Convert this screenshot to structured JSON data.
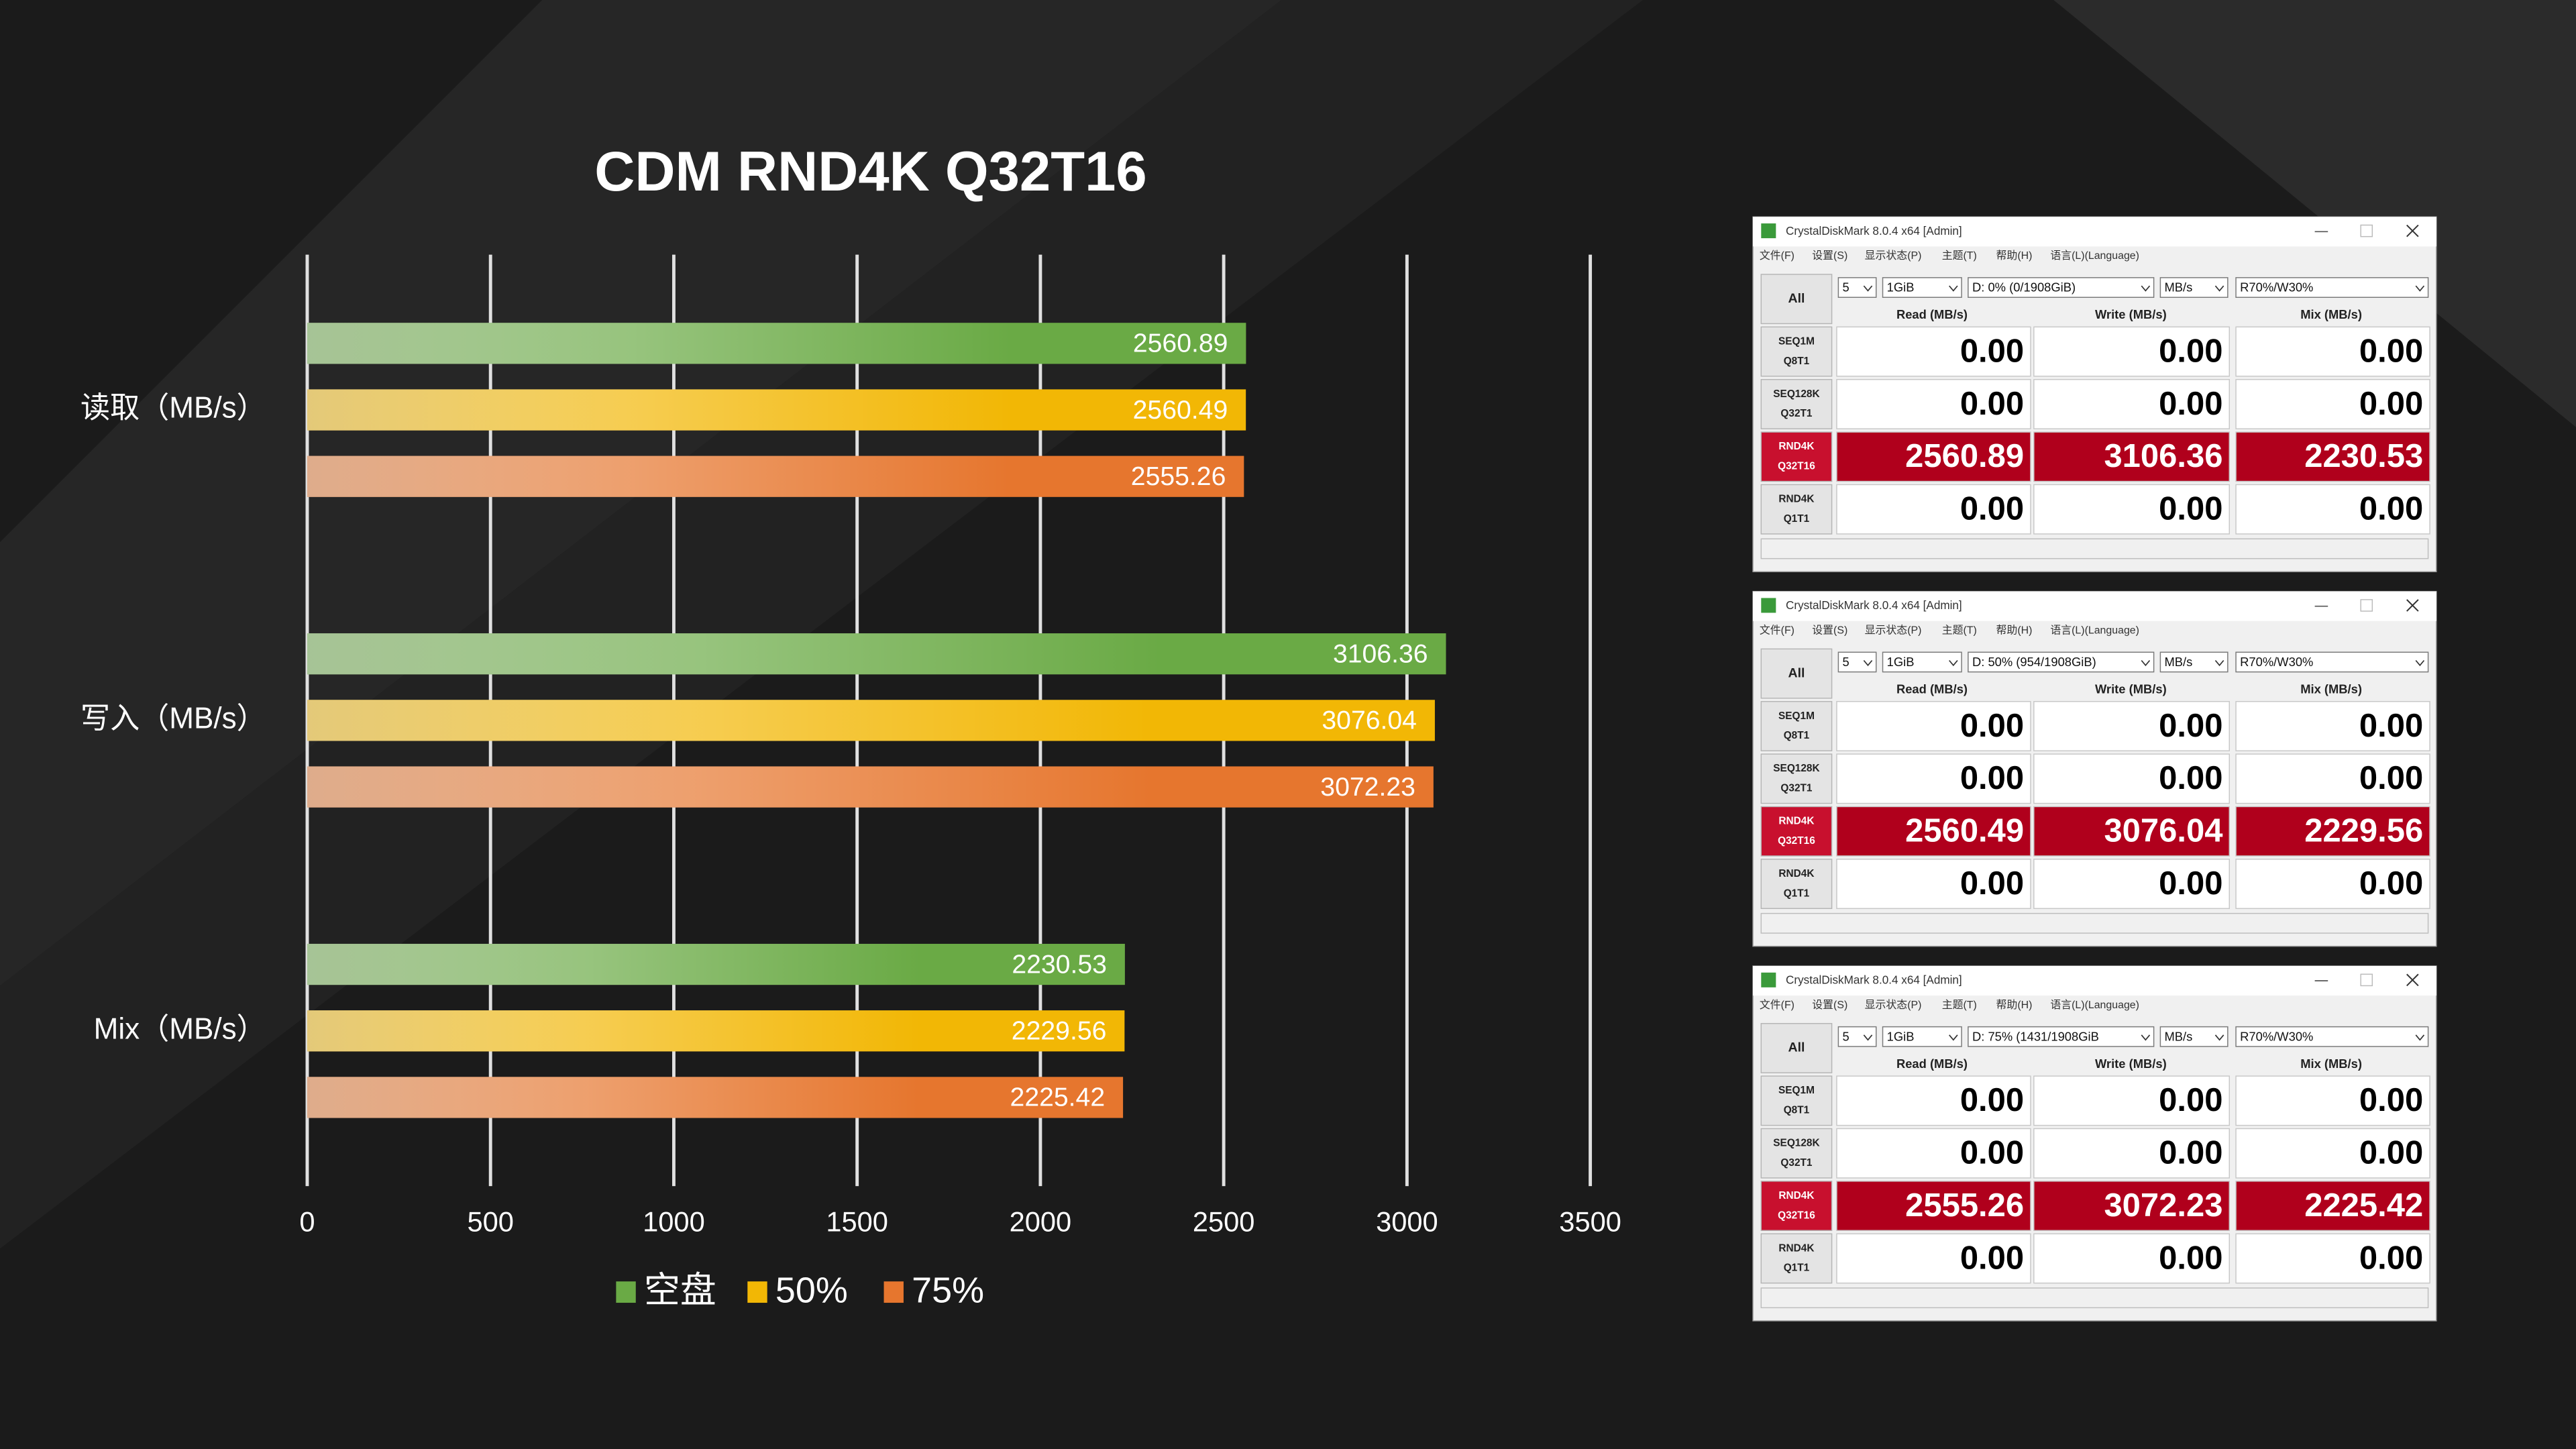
{
  "chart_data": {
    "type": "barh",
    "title": "CDM RND4K Q32T16",
    "categories": [
      "读取（MB/s）",
      "写入（MB/s）",
      "Mix（MB/s）"
    ],
    "series": [
      {
        "name": "空盘",
        "color": "#6aaa45",
        "values": [
          2560.89,
          3106.36,
          2230.53
        ]
      },
      {
        "name": "50%",
        "color": "#f2b705",
        "values": [
          2560.49,
          3076.04,
          2229.56
        ]
      },
      {
        "name": "75%",
        "color": "#e6762e",
        "values": [
          2555.26,
          3072.23,
          2225.42
        ]
      }
    ],
    "xlim": [
      0,
      3500
    ],
    "xticks": [
      0,
      500,
      1000,
      1500,
      2000,
      2500,
      3000,
      3500
    ],
    "grid": true,
    "legend": "bottom"
  },
  "windows": [
    {
      "title": "CrystalDiskMark 8.0.4 x64 [Admin]",
      "menu": [
        "文件(F)",
        "设置(S)",
        "显示状态(P)",
        "主题(T)",
        "帮助(H)",
        "语言(L)(Language)"
      ],
      "all": "All",
      "fields": [
        "5",
        "1GiB",
        "D: 0% (0/1908GiB)",
        "MB/s",
        "R70%/W30%"
      ],
      "headers": [
        "Read (MB/s)",
        "Write (MB/s)",
        "Mix (MB/s)"
      ],
      "rows": [
        {
          "label": [
            "SEQ1M",
            "Q8T1"
          ],
          "values": [
            "0.00",
            "0.00",
            "0.00"
          ]
        },
        {
          "label": [
            "SEQ128K",
            "Q32T1"
          ],
          "values": [
            "0.00",
            "0.00",
            "0.00"
          ]
        },
        {
          "label": [
            "RND4K",
            "Q32T16"
          ],
          "values": [
            "2560.89",
            "3106.36",
            "2230.53"
          ]
        },
        {
          "label": [
            "RND4K",
            "Q1T1"
          ],
          "values": [
            "0.00",
            "0.00",
            "0.00"
          ]
        }
      ]
    },
    {
      "title": "CrystalDiskMark 8.0.4 x64 [Admin]",
      "menu": [
        "文件(F)",
        "设置(S)",
        "显示状态(P)",
        "主题(T)",
        "帮助(H)",
        "语言(L)(Language)"
      ],
      "all": "All",
      "fields": [
        "5",
        "1GiB",
        "D: 50% (954/1908GiB)",
        "MB/s",
        "R70%/W30%"
      ],
      "headers": [
        "Read (MB/s)",
        "Write (MB/s)",
        "Mix (MB/s)"
      ],
      "rows": [
        {
          "label": [
            "SEQ1M",
            "Q8T1"
          ],
          "values": [
            "0.00",
            "0.00",
            "0.00"
          ]
        },
        {
          "label": [
            "SEQ128K",
            "Q32T1"
          ],
          "values": [
            "0.00",
            "0.00",
            "0.00"
          ]
        },
        {
          "label": [
            "RND4K",
            "Q32T16"
          ],
          "values": [
            "2560.49",
            "3076.04",
            "2229.56"
          ]
        },
        {
          "label": [
            "RND4K",
            "Q1T1"
          ],
          "values": [
            "0.00",
            "0.00",
            "0.00"
          ]
        }
      ]
    },
    {
      "title": "CrystalDiskMark 8.0.4 x64 [Admin]",
      "menu": [
        "文件(F)",
        "设置(S)",
        "显示状态(P)",
        "主题(T)",
        "帮助(H)",
        "语言(L)(Language)"
      ],
      "all": "All",
      "fields": [
        "5",
        "1GiB",
        "D: 75% (1431/1908GiB",
        "MB/s",
        "R70%/W30%"
      ],
      "headers": [
        "Read (MB/s)",
        "Write (MB/s)",
        "Mix (MB/s)"
      ],
      "rows": [
        {
          "label": [
            "SEQ1M",
            "Q8T1"
          ],
          "values": [
            "0.00",
            "0.00",
            "0.00"
          ]
        },
        {
          "label": [
            "SEQ128K",
            "Q32T1"
          ],
          "values": [
            "0.00",
            "0.00",
            "0.00"
          ]
        },
        {
          "label": [
            "RND4K",
            "Q32T16"
          ],
          "values": [
            "2555.26",
            "3072.23",
            "2225.42"
          ]
        },
        {
          "label": [
            "RND4K",
            "Q1T1"
          ],
          "values": [
            "0.00",
            "0.00",
            "0.00"
          ]
        }
      ]
    }
  ]
}
